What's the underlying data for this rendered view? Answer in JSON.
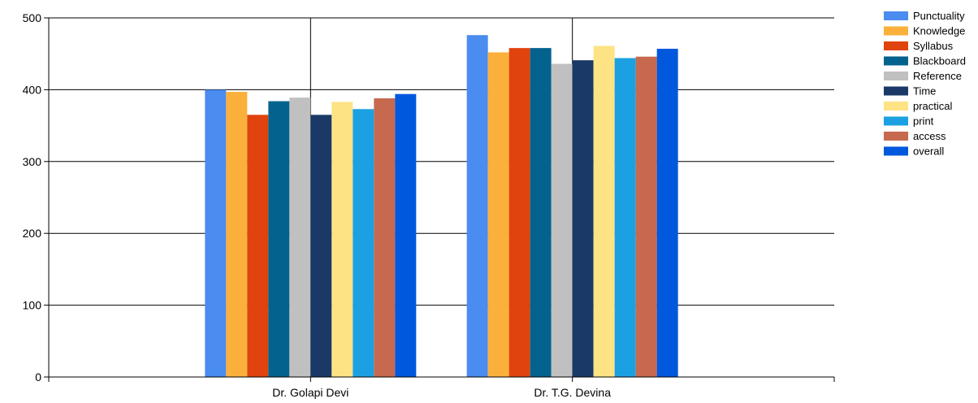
{
  "chart_data": {
    "type": "bar",
    "categories": [
      "Dr. Golapi Devi",
      "Dr. T.G. Devina"
    ],
    "yticks": [
      "0",
      "100",
      "200",
      "300",
      "400",
      "500"
    ],
    "ylim": [
      0,
      500
    ],
    "grid": true,
    "legend_position": "top-right",
    "series": [
      {
        "name": "Punctuality",
        "color": "#4a8cf0",
        "values": [
          400,
          476
        ]
      },
      {
        "name": "Knowledge",
        "color": "#fbb03b",
        "values": [
          397,
          452
        ]
      },
      {
        "name": "Syllabus",
        "color": "#e0430e",
        "values": [
          365,
          458
        ]
      },
      {
        "name": "Blackboard",
        "color": "#04628e",
        "values": [
          384,
          458
        ]
      },
      {
        "name": "Reference",
        "color": "#c0c0c0",
        "values": [
          389,
          436
        ]
      },
      {
        "name": "Time",
        "color": "#1b3966",
        "values": [
          365,
          441
        ]
      },
      {
        "name": "practical",
        "color": "#fde383",
        "values": [
          383,
          461
        ]
      },
      {
        "name": "print",
        "color": "#1ba1e2",
        "values": [
          373,
          444
        ]
      },
      {
        "name": "access",
        "color": "#c7694e",
        "values": [
          388,
          446
        ]
      },
      {
        "name": "overall",
        "color": "#0058dd",
        "values": [
          394,
          457
        ]
      }
    ]
  }
}
